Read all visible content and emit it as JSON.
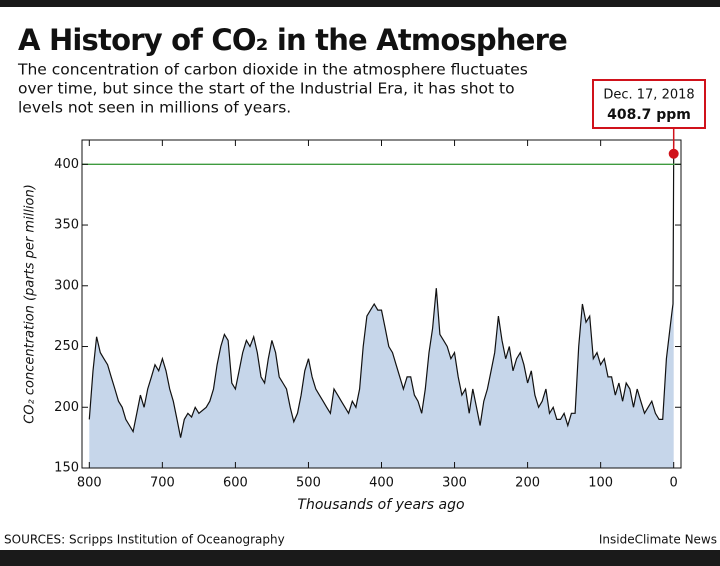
{
  "chart_data": {
    "type": "area",
    "title": "A History of CO₂ in the Atmosphere",
    "subtitle": [
      "The concentration of carbon dioxide in the atmosphere fluctuates",
      "over time, but since the start of the Industrial Era, it has shot to",
      "levels not seen in millions of years."
    ],
    "x_label": "Thousands of years ago",
    "y_label": "CO₂ concentration (parts per million)",
    "source": "SOURCES: Scripps Institution of Oceanography",
    "credit": "InsideClimate News",
    "x": [
      800,
      795,
      790,
      785,
      780,
      775,
      770,
      765,
      760,
      755,
      750,
      745,
      740,
      735,
      730,
      725,
      720,
      715,
      710,
      705,
      700,
      695,
      690,
      685,
      680,
      675,
      670,
      665,
      660,
      655,
      650,
      640,
      635,
      630,
      625,
      620,
      615,
      610,
      605,
      600,
      595,
      590,
      585,
      580,
      575,
      570,
      565,
      560,
      555,
      550,
      545,
      540,
      535,
      530,
      525,
      520,
      515,
      510,
      505,
      500,
      495,
      490,
      485,
      480,
      475,
      470,
      465,
      460,
      455,
      450,
      445,
      440,
      435,
      430,
      425,
      420,
      415,
      410,
      405,
      400,
      395,
      390,
      385,
      380,
      375,
      370,
      365,
      360,
      355,
      350,
      345,
      340,
      335,
      330,
      325,
      320,
      315,
      310,
      305,
      300,
      295,
      290,
      285,
      280,
      275,
      270,
      265,
      260,
      255,
      250,
      245,
      240,
      235,
      230,
      225,
      220,
      215,
      210,
      205,
      200,
      195,
      190,
      185,
      180,
      175,
      170,
      165,
      160,
      155,
      150,
      145,
      140,
      135,
      130,
      125,
      120,
      115,
      110,
      105,
      100,
      95,
      90,
      85,
      80,
      75,
      70,
      65,
      60,
      55,
      50,
      45,
      40,
      35,
      30,
      25,
      20,
      15,
      10,
      5,
      2,
      1,
      0
    ],
    "values": [
      190,
      230,
      258,
      245,
      240,
      235,
      225,
      215,
      205,
      200,
      190,
      185,
      180,
      195,
      210,
      200,
      215,
      225,
      235,
      230,
      240,
      230,
      215,
      205,
      190,
      175,
      190,
      195,
      192,
      200,
      195,
      200,
      205,
      215,
      235,
      250,
      260,
      255,
      220,
      215,
      230,
      245,
      255,
      250,
      258,
      245,
      225,
      220,
      240,
      255,
      245,
      225,
      220,
      215,
      200,
      188,
      195,
      210,
      230,
      240,
      225,
      215,
      210,
      205,
      200,
      195,
      215,
      210,
      205,
      200,
      195,
      205,
      200,
      215,
      250,
      275,
      280,
      285,
      280,
      280,
      265,
      250,
      245,
      235,
      225,
      215,
      225,
      225,
      210,
      205,
      195,
      215,
      245,
      265,
      298,
      260,
      255,
      250,
      240,
      245,
      225,
      210,
      215,
      195,
      215,
      200,
      185,
      205,
      215,
      230,
      245,
      275,
      255,
      240,
      250,
      230,
      240,
      245,
      235,
      220,
      230,
      210,
      200,
      205,
      215,
      195,
      200,
      190,
      190,
      195,
      185,
      195,
      195,
      250,
      285,
      270,
      275,
      240,
      245,
      235,
      240,
      225,
      225,
      210,
      220,
      205,
      220,
      215,
      200,
      215,
      205,
      195,
      200,
      205,
      195,
      190,
      190,
      240,
      265,
      280,
      285,
      408.7
    ],
    "color": "#c6d6ea",
    "line_color": "#111111",
    "xlim": [
      810,
      -10
    ],
    "xticks": [
      800,
      700,
      600,
      500,
      400,
      300,
      200,
      100,
      0
    ],
    "ylim": [
      150,
      420
    ],
    "yticks": [
      150,
      200,
      250,
      300,
      350,
      400
    ],
    "reference_line": {
      "value": 400,
      "color": "#3f9b3f"
    },
    "annotation": {
      "date": "Dec. 17, 2018",
      "label": "408.7 ppm",
      "color": "#d0121b"
    }
  }
}
